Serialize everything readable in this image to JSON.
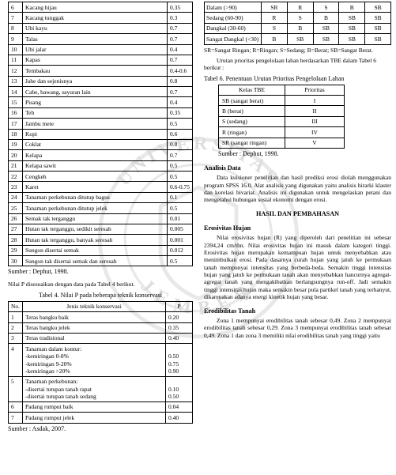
{
  "watermark": {
    "outer_color": "#b8b8b8",
    "text_color": "#888888",
    "top_text": "UNIVERSITAS",
    "bottom_text": "JEMBER"
  },
  "left_col": {
    "table1": {
      "rows": [
        [
          "6",
          "Kacang hijau",
          "0.35"
        ],
        [
          "7",
          "Kacang tunggak",
          "0.3"
        ],
        [
          "8",
          "Ubi kayu",
          "0.7"
        ],
        [
          "9",
          "Talas",
          "0.7"
        ],
        [
          "10",
          "Ubi jalar",
          "0.4"
        ],
        [
          "11",
          "Kapas",
          "0.7"
        ],
        [
          "12",
          "Tembakau",
          "0.4-0.6"
        ],
        [
          "13",
          "Jahe dan sejenisnya",
          "0.8"
        ],
        [
          "14",
          "Cabe, bawang, sayuran lain",
          "0.7"
        ],
        [
          "15",
          "Pisang",
          "0.4"
        ],
        [
          "16",
          "Teh",
          "0.35"
        ],
        [
          "17",
          "Jambu mete",
          "0.5"
        ],
        [
          "18",
          "Kopi",
          "0.6"
        ],
        [
          "19",
          "Coklat",
          "0.8"
        ],
        [
          "20",
          "Kelapa",
          "0.7"
        ],
        [
          "21",
          "Kelapa sawit",
          "0.5"
        ],
        [
          "22",
          "Cengkeh",
          "0.5"
        ],
        [
          "23",
          "Karet",
          "0.6-0.75"
        ],
        [
          "24",
          "Tanaman perkebunan ditutup bagus",
          "0.1"
        ],
        [
          "25",
          "Tanaman perkebunan ditutup jelek",
          "0.5"
        ],
        [
          "26",
          "Semak tak terganggu",
          "0.01"
        ],
        [
          "27",
          "Hutan tak terganggu, sedikit seresah",
          "0.005"
        ],
        [
          "28",
          "Hutan tak terganggu, banyak seresah",
          "0.001"
        ],
        [
          "29",
          "Sungon disertai semak",
          "0.012"
        ],
        [
          "30",
          "Sungon tak disertai semak dan seresah",
          "0.5"
        ]
      ],
      "source": "Sumber : Dephut, 1998."
    },
    "note4": "Nilai P disesuaikan dengan data pada Tabel 4 berikut.",
    "caption4": "Tabel 4. Nilai P pada beberapa teknik konservasi",
    "table4": {
      "head": [
        "No.",
        "Jenis teknik konservasi",
        "P"
      ],
      "rows": [
        [
          "1",
          "Teras bangku baik",
          "0.20"
        ],
        [
          "2",
          "Teras bangku jelek",
          "0.35"
        ],
        [
          "3",
          "Teras tradisional",
          "0.40"
        ],
        [
          "4",
          "Tanaman dalam kontur:\n-kemiringan 0-8%\n-kemiringan 9-20%\n-kemiringan >20%",
          "\n0.50\n0.75\n0.90"
        ],
        [
          "5",
          "Tanaman perkebunan:\n-disertai tutupan tanah rapat\n-disertai tutupan tanah sedang",
          "\n0.10\n0.50"
        ],
        [
          "6",
          "Padang rumput baik",
          "0.04"
        ],
        [
          "7",
          "Padang rumput jelek",
          "0.40"
        ]
      ],
      "source": "Sumber : Asdak, 2007."
    }
  },
  "right_col": {
    "table5": {
      "rows": [
        [
          "Dalam (>90)",
          "SR",
          "R",
          "S",
          "B",
          "SB"
        ],
        [
          "Sedang (60-90)",
          "R",
          "S",
          "B",
          "SB",
          "SB"
        ],
        [
          "Dangkal (30-60)",
          "S",
          "B",
          "SB",
          "SB",
          "SB"
        ],
        [
          "Sangat Dangkal (<30)",
          "B",
          "SB",
          "SB",
          "SB",
          "SB"
        ]
      ],
      "note": "SR=Sangat Ringan; R=Ringan; S=Sedang; B=Berat; SB=Sangat Berat."
    },
    "para5_6": "Urutan prioritas pengelolaan lahan berdasarkan TBE dalam Tabel 6 berikut :",
    "caption6": "Tabel 6. Penentuan Urutan Prioritas Pengelolaan Lahan",
    "table6": {
      "head": [
        "Kelas TBE",
        "Prioritas"
      ],
      "rows": [
        [
          "SB (sangat berat)",
          "I"
        ],
        [
          "B (berat)",
          "II"
        ],
        [
          "S (sedang)",
          "III"
        ],
        [
          "R (ringan)",
          "IV"
        ],
        [
          "SR (sangat ringan)",
          "V"
        ]
      ],
      "source": "Sumber : Dephut, 1998."
    },
    "analisis_head": "Analisis Data",
    "analisis_text": "Data kuisioner penelitian dan hasil prediksi erosi diolah menggunakan program SPSS 16.0. Alat analisis yang digunakan yaitu analisis hirarki klaster dan korelasi bivariat. Analisis ini digunakan untuk mengelaskan petani dan mengetahui hubungan sosial ekonomi dengan erosi.",
    "hasil_head": "HASIL DAN PEMBAHASAN",
    "erosiv_head": "Erosivitas Hujan",
    "erosiv_text": "Nilai erosivitas hujan (R) yang diperoleh dari penelitian ini sebesar 2394,24 cm/thn. Nilai erosivitas hujan ini masuk dalam kategori tinggi. Erosivitas hujan merupakan kemampuan hujan untuk menyebabkan atau menimbulkan erosi. Pada dasarnya curah hujan yang jatuh ke permukaan tanah mempunyai intensitas yang berbeda-beda. Semakin tinggi intensitas hujan yang jatuh ke permukaan tanah akan menyebabkan hancurnya agregat-agregat tanah yang mengakibatkan berlangsungnya run-off. Jadi semakin tinggi intensitas hujan maka semakin besar pula partikel tanah yang terhanyut, dikarenakan adanya energi kinetik hujan yang besar.",
    "erodib_head": "Erodibilitas Tanah",
    "erodib_text": "Zona 1 mempunyai erodibilitas tanah sebesar 0,49. Zona 2 mempunyai erodibilitas tanah sebesar 0,29. Zona 3 mempunyai erodibilitas tanah sebesar 0,49. Zona 1 dan zona 3 memiliki nilai erodibilitas tanah yang tinggi yaitu"
  }
}
